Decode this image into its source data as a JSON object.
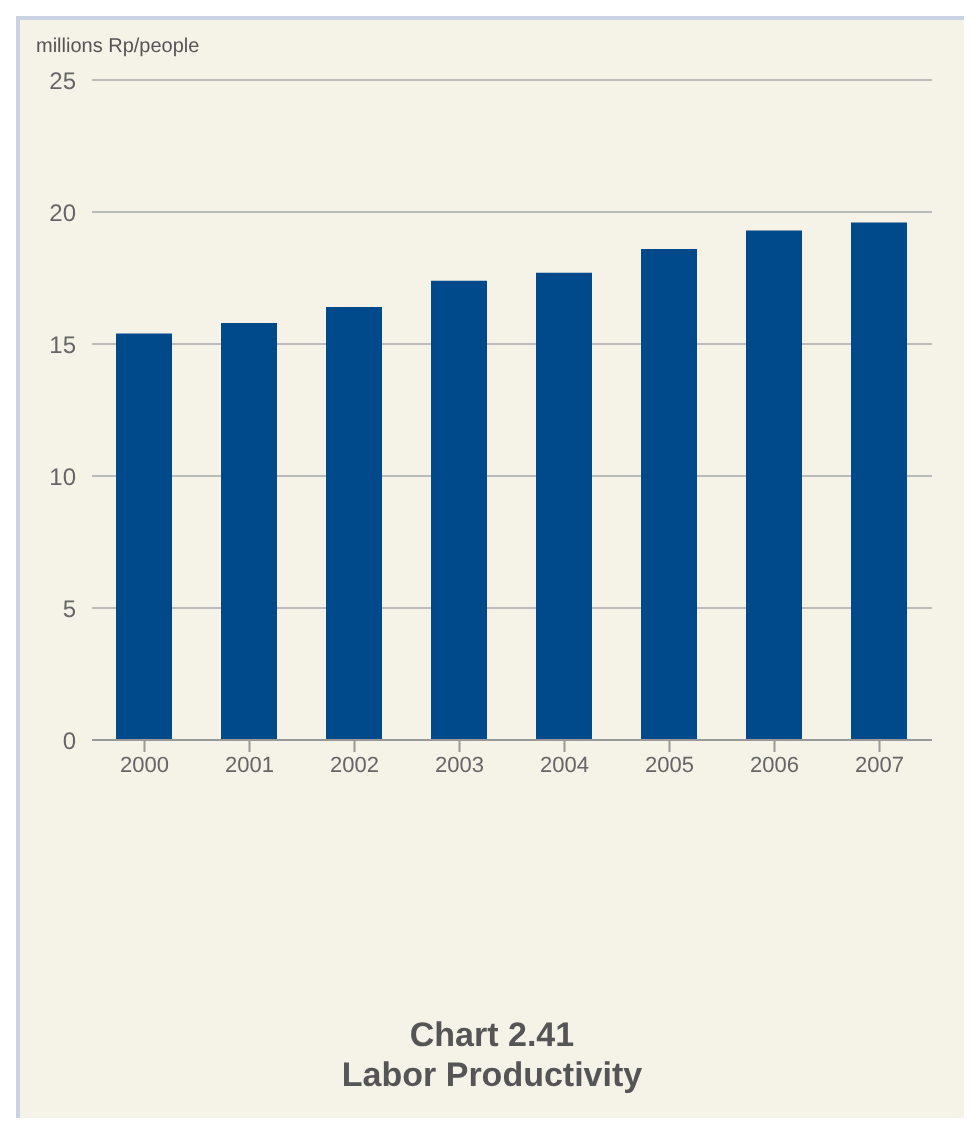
{
  "chart_data": {
    "type": "bar",
    "title": "Chart 2.41",
    "subtitle": "Labor Productivity",
    "ylabel": "millions Rp/people",
    "categories": [
      "2000",
      "2001",
      "2002",
      "2003",
      "2004",
      "2005",
      "2006",
      "2007"
    ],
    "values": [
      15.4,
      15.8,
      16.4,
      17.4,
      17.7,
      18.6,
      19.3,
      19.6
    ],
    "color": "#004a8b",
    "ylim": [
      0,
      25
    ],
    "yticks": [
      0,
      5,
      10,
      15,
      20,
      25
    ],
    "grid": "y"
  }
}
